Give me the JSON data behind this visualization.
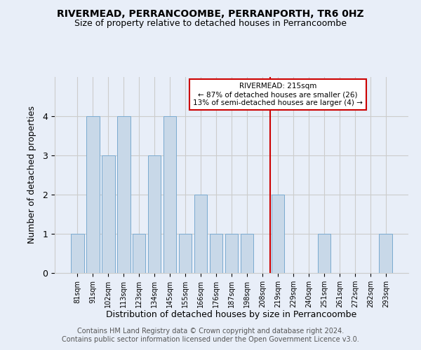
{
  "title": "RIVERMEAD, PERRANCOOMBE, PERRANPORTH, TR6 0HZ",
  "subtitle": "Size of property relative to detached houses in Perrancoombe",
  "xlabel": "Distribution of detached houses by size in Perrancoombe",
  "ylabel": "Number of detached properties",
  "footer": "Contains HM Land Registry data © Crown copyright and database right 2024.\nContains public sector information licensed under the Open Government Licence v3.0.",
  "categories": [
    "81sqm",
    "91sqm",
    "102sqm",
    "113sqm",
    "123sqm",
    "134sqm",
    "145sqm",
    "155sqm",
    "166sqm",
    "176sqm",
    "187sqm",
    "198sqm",
    "208sqm",
    "219sqm",
    "229sqm",
    "240sqm",
    "251sqm",
    "261sqm",
    "272sqm",
    "282sqm",
    "293sqm"
  ],
  "values": [
    1,
    4,
    3,
    4,
    1,
    3,
    4,
    1,
    2,
    1,
    1,
    1,
    0,
    2,
    0,
    0,
    1,
    0,
    0,
    0,
    1
  ],
  "bar_color": "#c8d8e8",
  "bar_edge_color": "#7aaad0",
  "grid_color": "#cccccc",
  "annotation_line_label": "RIVERMEAD: 215sqm",
  "annotation_text_line2": "← 87% of detached houses are smaller (26)",
  "annotation_text_line3": "13% of semi-detached houses are larger (4) →",
  "annotation_box_color": "#cc0000",
  "ylim": [
    0,
    5
  ],
  "yticks": [
    0,
    1,
    2,
    3,
    4
  ],
  "bg_color": "#e8eef8",
  "plot_bg_color": "#e8eef8",
  "rivermead_bar_index": 13,
  "title_fontsize": 10,
  "subtitle_fontsize": 9,
  "footer_fontsize": 7
}
